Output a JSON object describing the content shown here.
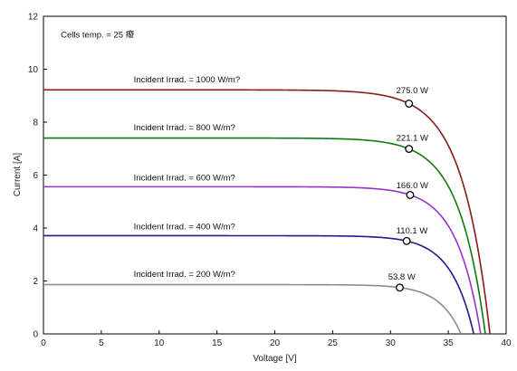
{
  "chart_data": {
    "type": "line",
    "xlabel": "Voltage [V]",
    "ylabel": "Current [A]",
    "xlim": [
      0,
      40
    ],
    "ylim": [
      0,
      12
    ],
    "xticks": [
      0,
      5,
      10,
      15,
      20,
      25,
      30,
      35,
      40
    ],
    "yticks": [
      0,
      2,
      4,
      6,
      8,
      10,
      12
    ],
    "grid": false,
    "annotations": [
      {
        "text": "Cells temp. = 25 癈",
        "x": 1.5,
        "y": 11.2
      }
    ],
    "series": [
      {
        "label": "Incident Irrad. = 1000 W/m?",
        "color": "#8b1a1a",
        "isc": 9.22,
        "voc": 38.6,
        "mpp_v": 31.6,
        "mpp_i": 8.7,
        "mpp_label": "275.0 W",
        "label_pos": [
          7.8,
          9.5
        ],
        "mpp_label_pos": [
          30.5,
          9.1
        ]
      },
      {
        "label": "Incident Irrad. = 800 W/m?",
        "color": "#0e7a0e",
        "isc": 7.4,
        "voc": 38.2,
        "mpp_v": 31.6,
        "mpp_i": 6.99,
        "mpp_label": "221.1 W",
        "label_pos": [
          7.8,
          7.7
        ],
        "mpp_label_pos": [
          30.5,
          7.3
        ]
      },
      {
        "label": "Incident Irrad. = 600 W/m?",
        "color": "#9932cc",
        "isc": 5.56,
        "voc": 37.8,
        "mpp_v": 31.7,
        "mpp_i": 5.25,
        "mpp_label": "166.0 W",
        "label_pos": [
          7.8,
          5.8
        ],
        "mpp_label_pos": [
          30.5,
          5.5
        ]
      },
      {
        "label": "Incident Irrad. = 400 W/m?",
        "color": "#1c1c8c",
        "isc": 3.71,
        "voc": 37.2,
        "mpp_v": 31.4,
        "mpp_i": 3.51,
        "mpp_label": "110.1 W",
        "label_pos": [
          7.8,
          3.95
        ],
        "mpp_label_pos": [
          30.5,
          3.8
        ]
      },
      {
        "label": "Incident Irrad. = 200 W/m?",
        "color": "#8c8c8c",
        "isc": 1.86,
        "voc": 36.1,
        "mpp_v": 30.8,
        "mpp_i": 1.75,
        "mpp_label": "53.8 W",
        "label_pos": [
          7.8,
          2.15
        ],
        "mpp_label_pos": [
          29.8,
          2.05
        ]
      }
    ]
  }
}
